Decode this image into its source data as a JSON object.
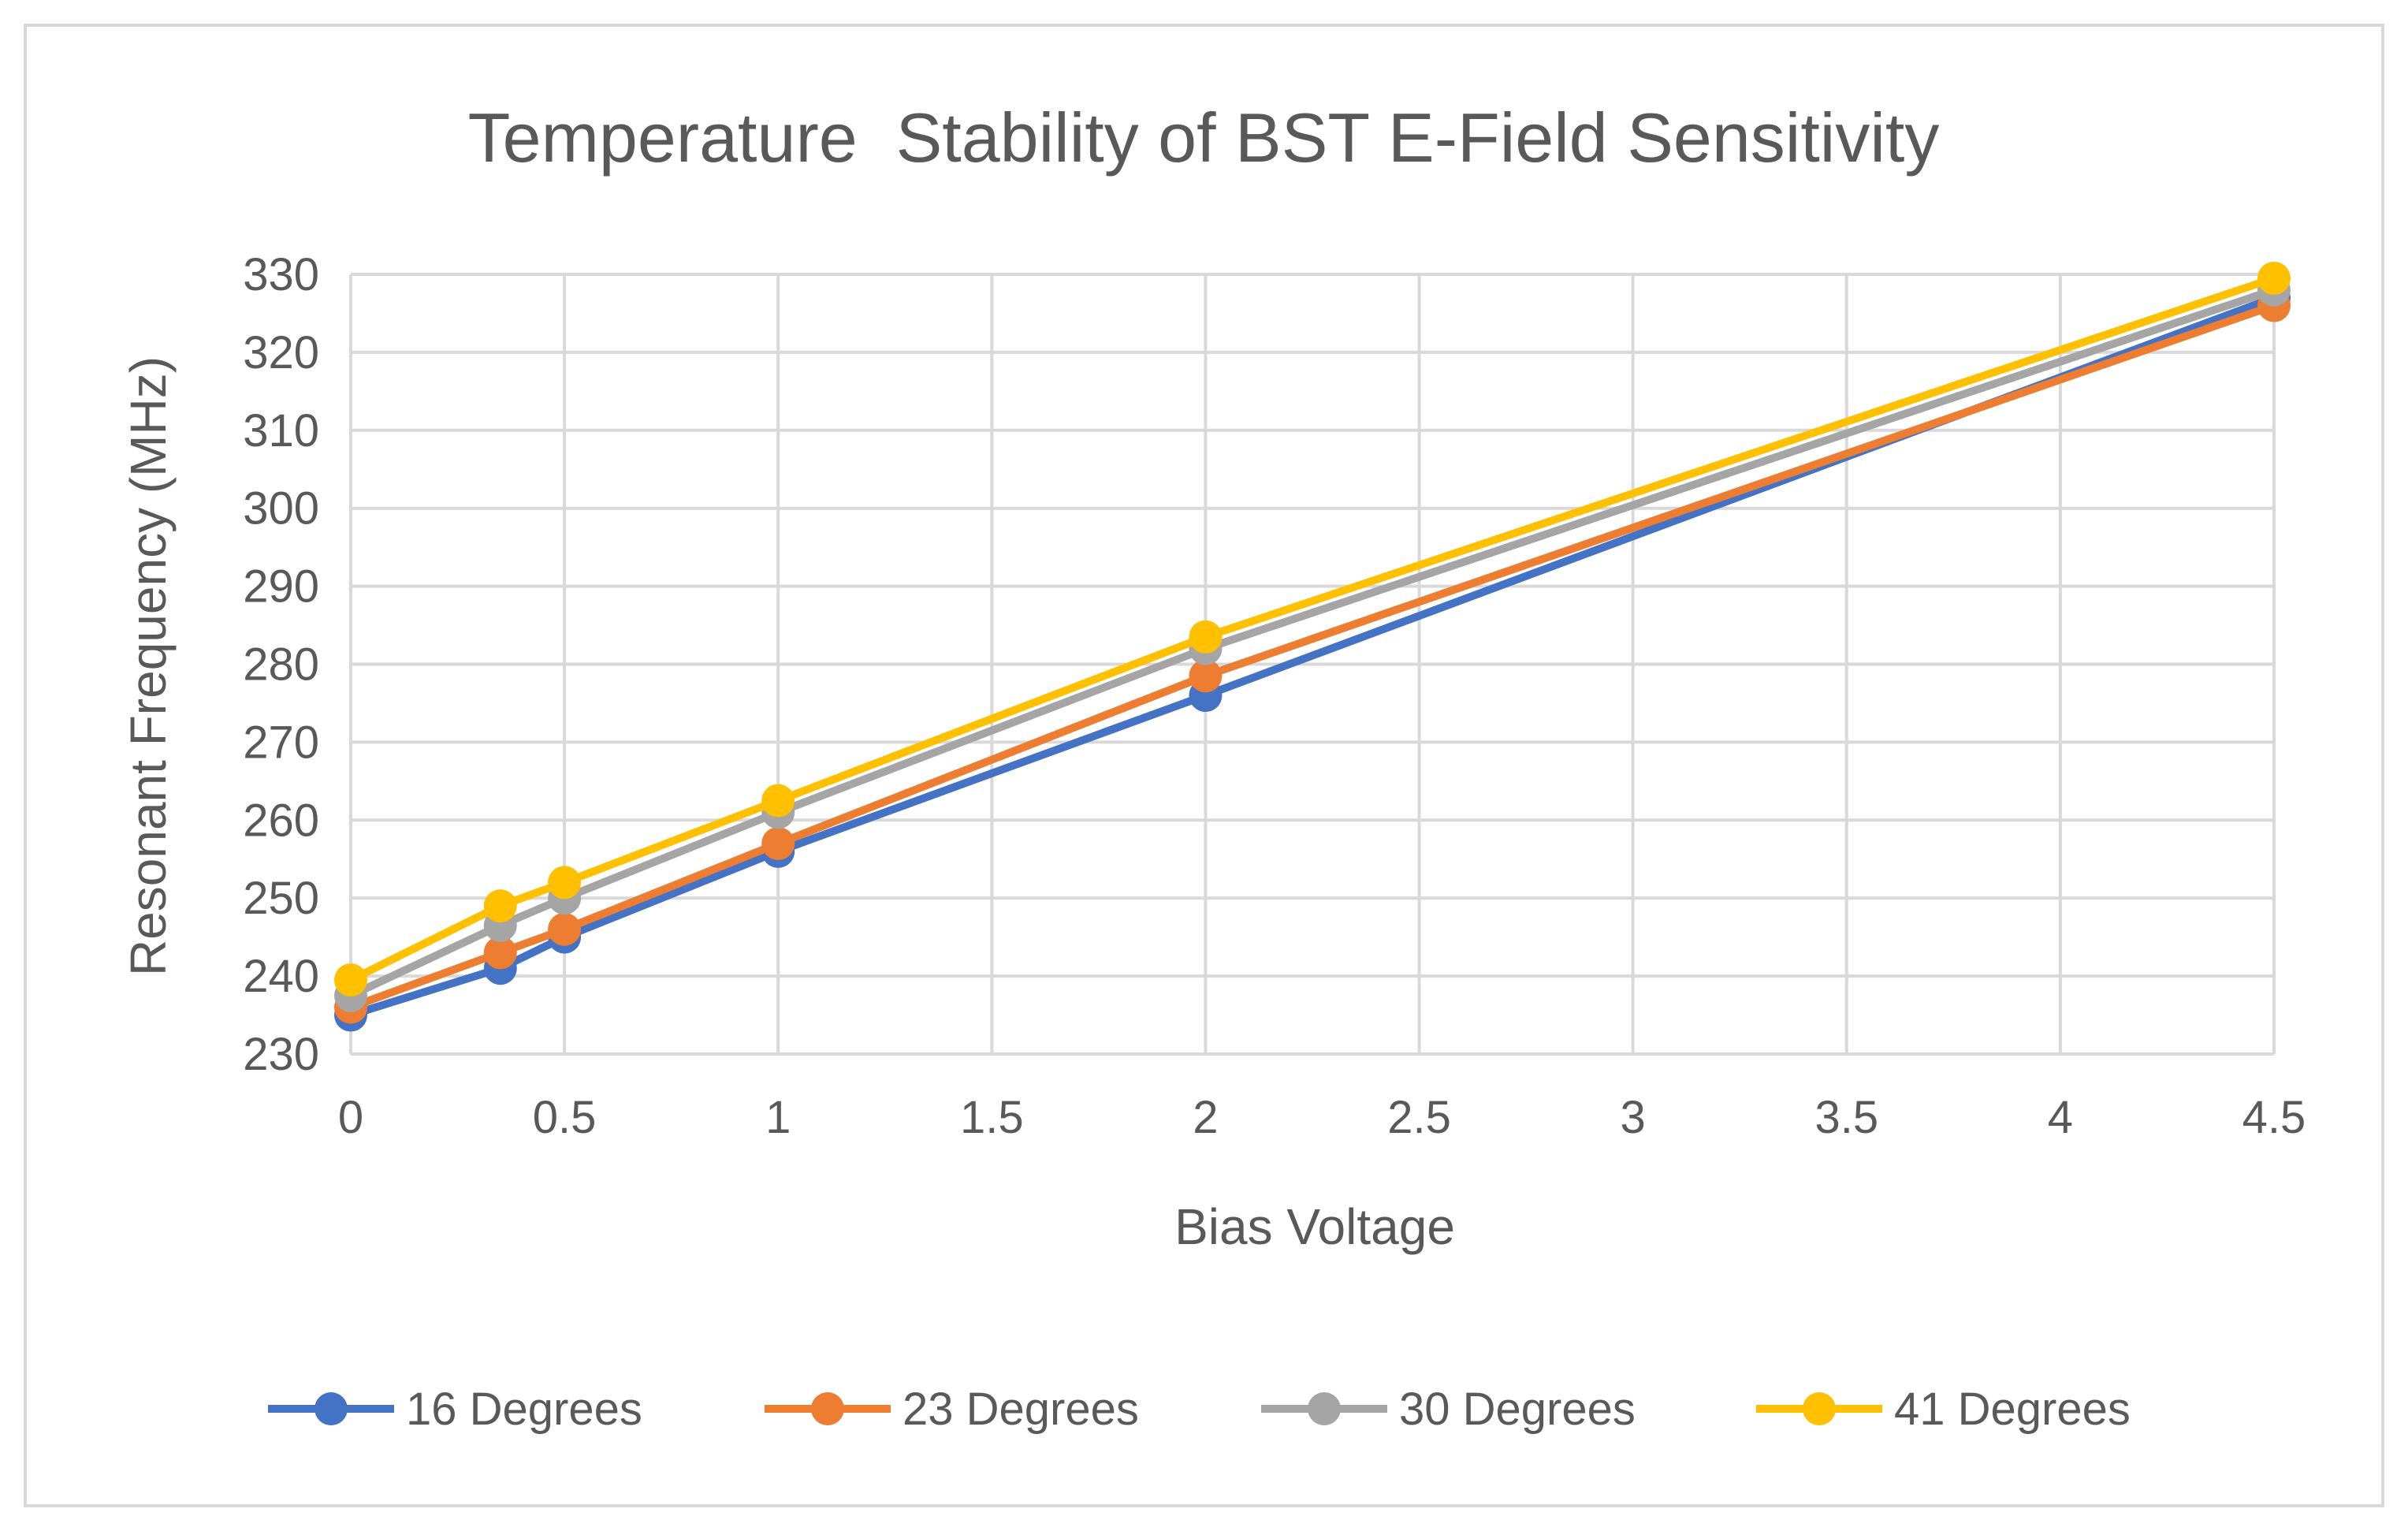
{
  "chart_data": {
    "type": "line",
    "title": "Temperature  Stability of BST E-Field Sensitivity",
    "xlabel": "Bias Voltage",
    "ylabel": "Resonant Frequency (MHz)",
    "xlim": [
      0,
      4.5
    ],
    "ylim": [
      230,
      330
    ],
    "x_ticks": [
      "0",
      "0.5",
      "1",
      "1.5",
      "2",
      "2.5",
      "3",
      "3.5",
      "4",
      "4.5"
    ],
    "y_ticks": [
      "230",
      "240",
      "250",
      "260",
      "270",
      "280",
      "290",
      "300",
      "310",
      "320",
      "330"
    ],
    "grid": true,
    "legend_position": "bottom",
    "x": [
      0,
      0.35,
      0.5,
      1,
      2,
      4.5
    ],
    "series": [
      {
        "name": "16 Degrees",
        "color": "#4472c4",
        "values": [
          235,
          241,
          245,
          256,
          276,
          327
        ]
      },
      {
        "name": "23 Degrees",
        "color": "#ed7d31",
        "values": [
          236,
          243,
          246,
          257,
          278.5,
          326
        ]
      },
      {
        "name": "30 Degrees",
        "color": "#a5a5a5",
        "values": [
          237.5,
          246.5,
          250,
          261,
          282,
          328
        ]
      },
      {
        "name": "41 Degrees",
        "color": "#ffc000",
        "values": [
          239.5,
          249,
          252,
          262.5,
          283.5,
          329.5
        ]
      }
    ]
  }
}
